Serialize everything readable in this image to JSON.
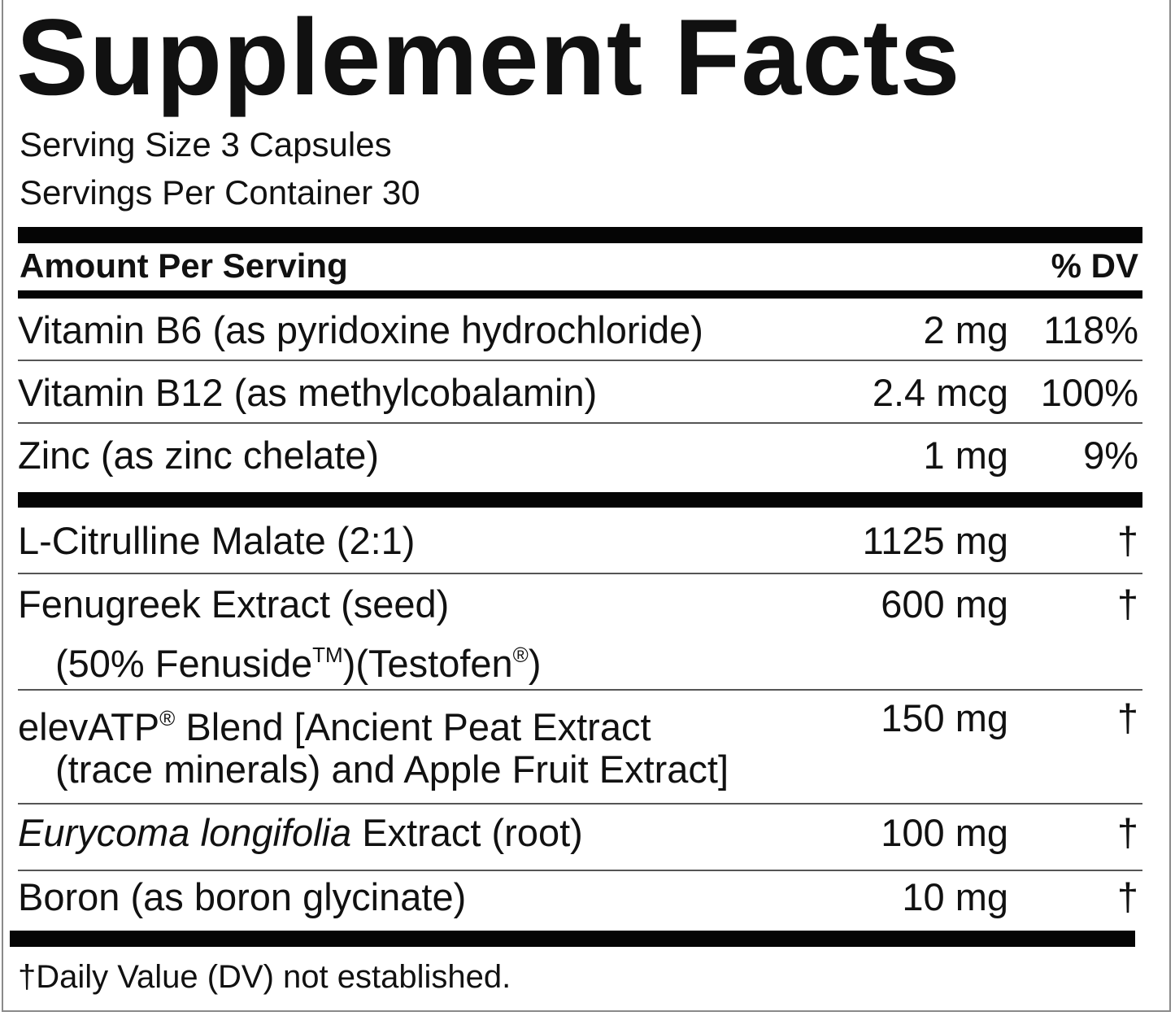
{
  "title": "Supplement Facts",
  "serving_size": "Serving Size 3 Capsules",
  "servings_per_container": "Servings Per Container 30",
  "header": {
    "amount_per_serving": "Amount Per Serving",
    "dv": "% DV"
  },
  "vitamins": [
    {
      "name": "Vitamin B6 (as pyridoxine hydrochloride)",
      "amount": "2 mg",
      "dv": "118%"
    },
    {
      "name": "Vitamin B12 (as methylcobalamin)",
      "amount": "2.4 mcg",
      "dv": "100%"
    },
    {
      "name": "Zinc (as zinc chelate)",
      "amount": "1 mg",
      "dv": "9%"
    }
  ],
  "ingredients": [
    {
      "name": "L-Citrulline Malate (2:1)",
      "amount": "1125 mg",
      "dv": "†"
    },
    {
      "name": "Fenugreek Extract (seed)",
      "line2a": "(50% Fenuside",
      "tm": "TM",
      "line2b": ")(Testofen",
      "reg": "®",
      "line2c": ")",
      "amount": "600 mg",
      "dv": "†"
    },
    {
      "name_a": "elevATP",
      "reg": "®",
      "name_b": " Blend [Ancient Peat Extract",
      "line2": "(trace minerals) and Apple Fruit Extract]",
      "amount": "150 mg",
      "dv": "†"
    },
    {
      "name_italic": "Eurycoma longifolia",
      "name_rest": " Extract (root)",
      "amount": "100 mg",
      "dv": "†"
    },
    {
      "name": "Boron (as boron glycinate)",
      "amount": "10 mg",
      "dv": "†"
    }
  ],
  "footnote": "†Daily Value (DV) not established."
}
